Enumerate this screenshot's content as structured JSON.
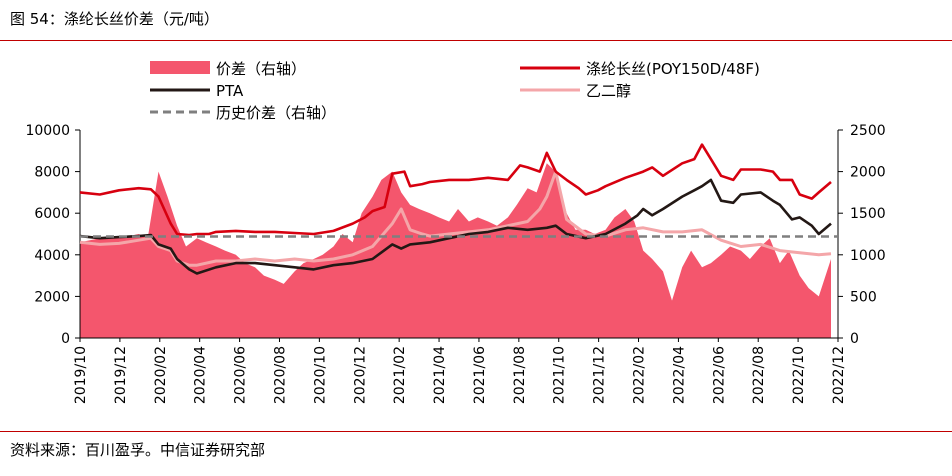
{
  "figure": {
    "title": "图 54：涤纶长丝价差（元/吨）",
    "source": "资料来源：百川盈孚。中信证券研究部"
  },
  "colors": {
    "spread_fill": "#f4566d",
    "poy": "#d7000f",
    "pta": "#231815",
    "meg": "#f4a6a9",
    "avg": "#7f7f7f",
    "rule": "#c00000"
  },
  "chart_data": {
    "type": "line",
    "x_axis": {
      "tick_labels": [
        "2019/10",
        "2019/12",
        "2020/02",
        "2020/04",
        "2020/06",
        "2020/08",
        "2020/10",
        "2020/12",
        "2021/02",
        "2021/04",
        "2021/06",
        "2021/08",
        "2021/10",
        "2021/12",
        "2022/02",
        "2022/04",
        "2022/06",
        "2022/08",
        "2022/10",
        "2022/12"
      ],
      "rotation": "vertical"
    },
    "y_left": {
      "range": [
        0,
        10000
      ],
      "ticks": [
        0,
        2000,
        4000,
        6000,
        8000,
        10000
      ]
    },
    "y_right": {
      "range": [
        0,
        2500
      ],
      "ticks": [
        0,
        500,
        1000,
        1500,
        2000,
        2500
      ]
    },
    "legend": {
      "placement": "top",
      "entries": [
        {
          "key": "spread",
          "label": "价差（右轴）"
        },
        {
          "key": "poy",
          "label": "涤纶长丝(POY150D/48F)"
        },
        {
          "key": "pta",
          "label": "PTA"
        },
        {
          "key": "meg",
          "label": "乙二醇"
        },
        {
          "key": "avg",
          "label": "历史价差（右轴）"
        }
      ]
    },
    "series": [
      {
        "name": "价差（右轴）",
        "key": "spread",
        "axis": "right",
        "style": "area",
        "x": [
          "2019-10-01",
          "2019-11-01",
          "2019-12-01",
          "2020-01-01",
          "2020-01-15",
          "2020-02-01",
          "2020-02-15",
          "2020-03-01",
          "2020-03-15",
          "2020-04-01",
          "2020-04-15",
          "2020-05-01",
          "2020-05-15",
          "2020-06-01",
          "2020-06-15",
          "2020-07-01",
          "2020-07-15",
          "2020-08-01",
          "2020-08-15",
          "2020-09-01",
          "2020-09-15",
          "2020-10-01",
          "2020-10-15",
          "2020-11-01",
          "2020-11-15",
          "2020-12-01",
          "2020-12-15",
          "2021-01-01",
          "2021-01-15",
          "2021-02-01",
          "2021-02-15",
          "2021-03-01",
          "2021-03-15",
          "2021-04-01",
          "2021-04-15",
          "2021-05-01",
          "2021-05-15",
          "2021-06-01",
          "2021-06-15",
          "2021-07-01",
          "2021-07-15",
          "2021-08-01",
          "2021-08-15",
          "2021-09-01",
          "2021-09-15",
          "2021-10-01",
          "2021-10-15",
          "2021-11-01",
          "2021-11-15",
          "2021-12-01",
          "2021-12-15",
          "2022-01-01",
          "2022-01-15",
          "2022-02-01",
          "2022-02-15",
          "2022-03-01",
          "2022-03-15",
          "2022-04-01",
          "2022-04-15",
          "2022-05-01",
          "2022-05-15",
          "2022-06-01",
          "2022-06-15",
          "2022-07-01",
          "2022-07-15",
          "2022-08-01",
          "2022-08-15",
          "2022-09-01",
          "2022-09-15",
          "2022-10-01",
          "2022-10-15",
          "2022-11-01",
          "2022-11-15",
          "2022-12-01",
          "2022-12-20"
        ],
        "values": [
          1150,
          1200,
          1200,
          1250,
          1200,
          2000,
          1700,
          1350,
          1100,
          1200,
          1150,
          1100,
          1050,
          1000,
          900,
          850,
          750,
          700,
          650,
          800,
          900,
          950,
          1000,
          1100,
          1250,
          1150,
          1500,
          1700,
          1900,
          2000,
          1750,
          1600,
          1550,
          1500,
          1450,
          1400,
          1550,
          1400,
          1450,
          1400,
          1350,
          1450,
          1600,
          1800,
          1750,
          2100,
          2000,
          1500,
          1300,
          1300,
          1250,
          1300,
          1450,
          1550,
          1400,
          1050,
          950,
          800,
          450,
          850,
          1050,
          850,
          900,
          1000,
          1100,
          1050,
          950,
          1100,
          1200,
          900,
          1050,
          750,
          600,
          500,
          950
        ]
      },
      {
        "name": "涤纶长丝(POY150D/48F)",
        "key": "poy",
        "axis": "left",
        "style": "line",
        "x": [
          "2019-10-01",
          "2019-11-01",
          "2019-12-01",
          "2020-01-01",
          "2020-01-20",
          "2020-02-01",
          "2020-02-20",
          "2020-03-01",
          "2020-03-20",
          "2020-04-01",
          "2020-04-20",
          "2020-05-01",
          "2020-06-01",
          "2020-07-01",
          "2020-08-01",
          "2020-09-01",
          "2020-10-01",
          "2020-11-01",
          "2020-12-01",
          "2020-12-20",
          "2021-01-01",
          "2021-01-20",
          "2021-02-01",
          "2021-02-20",
          "2021-03-01",
          "2021-03-20",
          "2021-04-01",
          "2021-05-01",
          "2021-06-01",
          "2021-07-01",
          "2021-08-01",
          "2021-08-20",
          "2021-09-01",
          "2021-09-20",
          "2021-10-01",
          "2021-10-15",
          "2021-11-01",
          "2021-11-20",
          "2021-12-01",
          "2021-12-20",
          "2022-01-01",
          "2022-02-01",
          "2022-03-01",
          "2022-03-15",
          "2022-04-01",
          "2022-05-01",
          "2022-05-20",
          "2022-06-01",
          "2022-06-15",
          "2022-07-01",
          "2022-07-20",
          "2022-08-01",
          "2022-09-01",
          "2022-09-20",
          "2022-10-01",
          "2022-10-20",
          "2022-11-01",
          "2022-11-20",
          "2022-12-01",
          "2022-12-20"
        ],
        "values": [
          7000,
          6900,
          7100,
          7200,
          7150,
          6800,
          5500,
          5000,
          4950,
          5000,
          5000,
          5100,
          5150,
          5100,
          5100,
          5050,
          5000,
          5150,
          5500,
          5800,
          6100,
          6300,
          7900,
          8000,
          7300,
          7400,
          7500,
          7600,
          7600,
          7700,
          7600,
          8300,
          8200,
          8000,
          8900,
          8000,
          7600,
          7200,
          6900,
          7100,
          7300,
          7700,
          8000,
          8200,
          7800,
          8400,
          8600,
          9300,
          8600,
          7800,
          7600,
          8100,
          8100,
          8000,
          7600,
          7600,
          6900,
          6700,
          7000,
          7500
        ]
      },
      {
        "name": "PTA",
        "key": "pta",
        "axis": "left",
        "style": "line",
        "x": [
          "2019-10-01",
          "2019-11-01",
          "2019-12-01",
          "2020-01-01",
          "2020-01-20",
          "2020-02-01",
          "2020-02-20",
          "2020-03-01",
          "2020-03-20",
          "2020-04-01",
          "2020-05-01",
          "2020-06-01",
          "2020-07-01",
          "2020-08-01",
          "2020-09-01",
          "2020-10-01",
          "2020-11-01",
          "2020-12-01",
          "2021-01-01",
          "2021-02-01",
          "2021-02-15",
          "2021-03-01",
          "2021-04-01",
          "2021-05-01",
          "2021-06-01",
          "2021-07-01",
          "2021-08-01",
          "2021-09-01",
          "2021-10-01",
          "2021-10-15",
          "2021-11-01",
          "2021-12-01",
          "2022-01-01",
          "2022-02-01",
          "2022-02-20",
          "2022-03-01",
          "2022-03-15",
          "2022-04-01",
          "2022-05-01",
          "2022-05-20",
          "2022-06-01",
          "2022-06-15",
          "2022-07-01",
          "2022-07-20",
          "2022-08-01",
          "2022-09-01",
          "2022-09-20",
          "2022-10-01",
          "2022-10-20",
          "2022-11-01",
          "2022-11-20",
          "2022-12-01",
          "2022-12-20"
        ],
        "values": [
          4900,
          4800,
          4850,
          4900,
          4950,
          4500,
          4300,
          3800,
          3300,
          3100,
          3400,
          3600,
          3600,
          3500,
          3400,
          3300,
          3500,
          3600,
          3800,
          4500,
          4300,
          4500,
          4600,
          4800,
          5000,
          5100,
          5300,
          5200,
          5300,
          5400,
          5000,
          4800,
          5000,
          5500,
          5900,
          6200,
          5900,
          6200,
          6800,
          7100,
          7300,
          7600,
          6600,
          6500,
          6900,
          7000,
          6600,
          6400,
          5700,
          5800,
          5400,
          5000,
          5500
        ]
      },
      {
        "name": "乙二醇",
        "key": "meg",
        "axis": "left",
        "style": "line",
        "x": [
          "2019-10-01",
          "2019-11-01",
          "2019-12-01",
          "2020-01-01",
          "2020-01-20",
          "2020-02-01",
          "2020-02-20",
          "2020-03-01",
          "2020-03-20",
          "2020-04-01",
          "2020-05-01",
          "2020-06-01",
          "2020-07-01",
          "2020-08-01",
          "2020-09-01",
          "2020-10-01",
          "2020-11-01",
          "2020-12-01",
          "2021-01-01",
          "2021-02-01",
          "2021-02-15",
          "2021-03-01",
          "2021-03-20",
          "2021-04-01",
          "2021-05-01",
          "2021-06-01",
          "2021-07-01",
          "2021-08-01",
          "2021-09-01",
          "2021-09-20",
          "2021-10-01",
          "2021-10-15",
          "2021-11-01",
          "2021-12-01",
          "2022-01-01",
          "2022-02-01",
          "2022-03-01",
          "2022-04-01",
          "2022-05-01",
          "2022-06-01",
          "2022-07-01",
          "2022-08-01",
          "2022-09-01",
          "2022-10-01",
          "2022-11-01",
          "2022-12-01",
          "2022-12-20"
        ],
        "values": [
          4600,
          4500,
          4550,
          4700,
          4800,
          4400,
          4200,
          3700,
          3500,
          3500,
          3700,
          3700,
          3800,
          3700,
          3800,
          3700,
          3800,
          4000,
          4400,
          5500,
          6200,
          5200,
          5000,
          4900,
          5000,
          5100,
          5200,
          5400,
          5600,
          6200,
          6800,
          8000,
          5700,
          5000,
          4900,
          5200,
          5300,
          5100,
          5100,
          5200,
          4700,
          4400,
          4500,
          4200,
          4100,
          4000,
          4050
        ]
      },
      {
        "name": "历史价差（右轴）",
        "key": "avg",
        "axis": "right",
        "style": "dashed",
        "x": [
          "2019-10-01",
          "2022-12-31"
        ],
        "values": [
          1220,
          1220
        ]
      }
    ]
  }
}
